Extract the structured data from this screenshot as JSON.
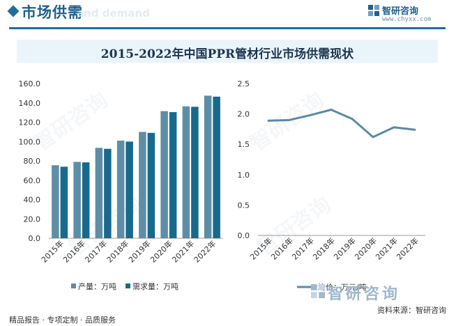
{
  "header": {
    "section_title": "市场供需",
    "section_subtitle": "and demand",
    "logo_name": "智研咨询",
    "logo_url": "www.chyxx.com"
  },
  "title": "2015-2022年中国PPR管材行业市场供需现状",
  "chart_data": [
    {
      "type": "bar",
      "categories": [
        "2015年",
        "2016年",
        "2017年",
        "2018年",
        "2019年",
        "2020年",
        "2021年",
        "2022年"
      ],
      "series": [
        {
          "name": "产量：万吨",
          "color": "#5e8ea6",
          "values": [
            75.5,
            79.0,
            93.5,
            101.0,
            110.0,
            131.5,
            136.5,
            147.5
          ]
        },
        {
          "name": "需求量：万吨",
          "color": "#176a8c",
          "values": [
            74.0,
            78.5,
            92.5,
            100.0,
            109.0,
            130.5,
            136.0,
            146.5
          ]
        }
      ],
      "ylim": [
        0,
        160
      ],
      "yticks": [
        "0.0",
        "20.0",
        "40.0",
        "60.0",
        "80.0",
        "100.0",
        "120.0",
        "140.0",
        "160.0"
      ],
      "grid": false,
      "legend": "bottom"
    },
    {
      "type": "line",
      "categories": [
        "2015年",
        "2016年",
        "2017年",
        "2018年",
        "2019年",
        "2020年",
        "2021年",
        "2022年"
      ],
      "series": [
        {
          "name": "均价：万元/吨",
          "color": "#5a8aa4",
          "values": [
            1.89,
            1.9,
            1.98,
            2.07,
            1.92,
            1.62,
            1.78,
            1.74
          ]
        }
      ],
      "ylim": [
        0,
        2.5
      ],
      "yticks": [
        "0.0",
        "0.5",
        "1.0",
        "1.5",
        "2.0",
        "2.5"
      ],
      "grid": false,
      "legend": "bottom"
    }
  ],
  "footer": {
    "left": "精品报告 · 专项定制 · 品质服务",
    "brand": "智研咨询",
    "source": "资料来源：智研咨询"
  },
  "watermark_text": "智研咨询"
}
